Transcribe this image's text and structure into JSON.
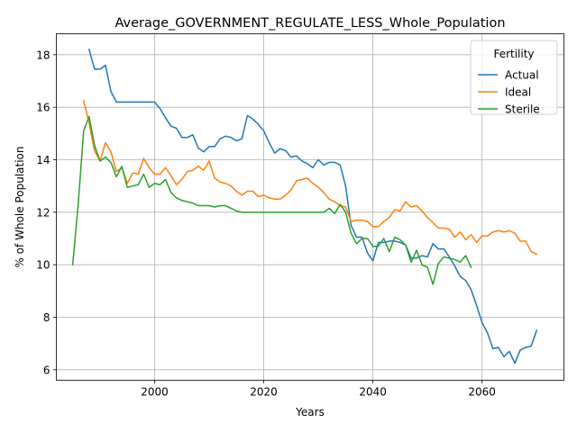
{
  "chart_data": {
    "type": "line",
    "title": "Average_GOVERNMENT_REGULATE_LESS_Whole_Population",
    "xlabel": "Years",
    "ylabel": "% of Whole Population",
    "xlim": [
      1982,
      2075
    ],
    "ylim": [
      5.6,
      18.8
    ],
    "xticks": [
      2000,
      2020,
      2040,
      2060
    ],
    "yticks": [
      6,
      8,
      10,
      12,
      14,
      16,
      18
    ],
    "grid": true,
    "legend": {
      "title": "Fertility",
      "position": "top-right"
    },
    "series": [
      {
        "name": "Actual",
        "color": "#1f77b4",
        "x": [
          1988,
          1989,
          1990,
          1991,
          1992,
          1993,
          1994,
          1995,
          1996,
          1997,
          1998,
          1999,
          2000,
          2001,
          2002,
          2003,
          2004,
          2005,
          2006,
          2007,
          2008,
          2009,
          2010,
          2011,
          2012,
          2013,
          2014,
          2015,
          2016,
          2017,
          2018,
          2019,
          2020,
          2021,
          2022,
          2023,
          2024,
          2025,
          2026,
          2027,
          2028,
          2029,
          2030,
          2031,
          2032,
          2033,
          2034,
          2035,
          2036,
          2037,
          2038,
          2039,
          2040,
          2041,
          2042,
          2043,
          2044,
          2045,
          2046,
          2047,
          2048,
          2049,
          2050,
          2051,
          2052,
          2053,
          2054,
          2055,
          2056,
          2057,
          2058,
          2059,
          2060,
          2061,
          2062,
          2063,
          2064,
          2065,
          2066,
          2067,
          2068,
          2069,
          2070
        ],
        "y": [
          18.2,
          17.45,
          17.45,
          17.6,
          16.6,
          16.2,
          16.2,
          16.2,
          16.2,
          16.2,
          16.2,
          16.2,
          16.2,
          15.95,
          15.6,
          15.28,
          15.2,
          14.85,
          14.85,
          14.95,
          14.45,
          14.3,
          14.5,
          14.5,
          14.8,
          14.9,
          14.85,
          14.72,
          14.8,
          15.68,
          15.55,
          15.35,
          15.1,
          14.65,
          14.25,
          14.42,
          14.35,
          14.1,
          14.15,
          13.95,
          13.85,
          13.7,
          14.0,
          13.8,
          13.9,
          13.9,
          13.8,
          13.0,
          11.5,
          11.05,
          11.05,
          10.45,
          10.15,
          10.85,
          10.85,
          10.9,
          10.9,
          10.85,
          10.75,
          10.25,
          10.25,
          10.35,
          10.3,
          10.8,
          10.6,
          10.6,
          10.3,
          9.95,
          9.55,
          9.4,
          9.05,
          8.45,
          7.8,
          7.4,
          6.8,
          6.85,
          6.5,
          6.7,
          6.25,
          6.75,
          6.85,
          6.9,
          7.5
        ]
      },
      {
        "name": "Ideal",
        "color": "#ff7f0e",
        "x": [
          1987,
          1988,
          1989,
          1990,
          1991,
          1992,
          1993,
          1994,
          1995,
          1996,
          1997,
          1998,
          1999,
          2000,
          2001,
          2002,
          2003,
          2004,
          2005,
          2006,
          2007,
          2008,
          2009,
          2010,
          2011,
          2012,
          2013,
          2014,
          2015,
          2016,
          2017,
          2018,
          2019,
          2020,
          2021,
          2022,
          2023,
          2024,
          2025,
          2026,
          2027,
          2028,
          2029,
          2030,
          2031,
          2032,
          2033,
          2034,
          2035,
          2036,
          2037,
          2038,
          2039,
          2040,
          2041,
          2042,
          2043,
          2044,
          2045,
          2046,
          2047,
          2048,
          2049,
          2050,
          2051,
          2052,
          2053,
          2054,
          2055,
          2056,
          2057,
          2058,
          2059,
          2060,
          2061,
          2062,
          2063,
          2064,
          2065,
          2066,
          2067,
          2068,
          2069,
          2070
        ],
        "y": [
          16.25,
          15.4,
          14.35,
          13.95,
          14.65,
          14.3,
          13.55,
          13.7,
          13.1,
          13.5,
          13.45,
          14.05,
          13.7,
          13.45,
          13.45,
          13.7,
          13.4,
          13.05,
          13.25,
          13.55,
          13.6,
          13.75,
          13.6,
          13.95,
          13.3,
          13.15,
          13.1,
          13.0,
          12.8,
          12.65,
          12.8,
          12.8,
          12.6,
          12.65,
          12.55,
          12.5,
          12.5,
          12.65,
          12.85,
          13.2,
          13.25,
          13.3,
          13.1,
          12.95,
          12.75,
          12.5,
          12.4,
          12.25,
          12.2,
          11.65,
          11.7,
          11.7,
          11.65,
          11.45,
          11.45,
          11.65,
          11.8,
          12.1,
          12.05,
          12.4,
          12.2,
          12.25,
          12.05,
          11.8,
          11.6,
          11.4,
          11.4,
          11.35,
          11.05,
          11.25,
          10.95,
          11.15,
          10.85,
          11.1,
          11.1,
          11.25,
          11.3,
          11.25,
          11.3,
          11.2,
          10.9,
          10.9,
          10.5,
          10.4
        ]
      },
      {
        "name": "Sterile",
        "color": "#2ca02c",
        "x": [
          1985,
          1986,
          1987,
          1988,
          1989,
          1990,
          1991,
          1992,
          1993,
          1994,
          1995,
          1996,
          1997,
          1998,
          1999,
          2000,
          2001,
          2002,
          2003,
          2004,
          2005,
          2006,
          2007,
          2008,
          2009,
          2010,
          2011,
          2012,
          2013,
          2014,
          2015,
          2016,
          2017,
          2018,
          2019,
          2020,
          2021,
          2022,
          2023,
          2024,
          2025,
          2026,
          2027,
          2028,
          2029,
          2030,
          2031,
          2032,
          2033,
          2034,
          2035,
          2036,
          2037,
          2038,
          2039,
          2040,
          2041,
          2042,
          2043,
          2044,
          2045,
          2046,
          2047,
          2048,
          2049,
          2050,
          2051,
          2052,
          2053,
          2054,
          2055,
          2056,
          2057,
          2058
        ],
        "y": [
          10.0,
          12.3,
          15.1,
          15.65,
          14.55,
          13.95,
          14.1,
          13.9,
          13.35,
          13.75,
          12.95,
          13.0,
          13.05,
          13.45,
          12.95,
          13.1,
          13.05,
          13.25,
          12.75,
          12.55,
          12.45,
          12.4,
          12.35,
          12.25,
          12.25,
          12.25,
          12.2,
          12.25,
          12.25,
          12.15,
          12.05,
          12.0,
          12.0,
          12.0,
          12.0,
          12.0,
          12.0,
          12.0,
          12.0,
          12.0,
          12.0,
          12.0,
          12.0,
          12.0,
          12.0,
          12.0,
          12.0,
          12.15,
          11.95,
          12.3,
          12.0,
          11.2,
          10.8,
          11.0,
          11.0,
          10.7,
          10.7,
          11.0,
          10.5,
          11.05,
          10.95,
          10.75,
          10.1,
          10.55,
          10.0,
          9.9,
          9.25,
          10.05,
          10.3,
          10.25,
          10.2,
          10.1,
          10.35,
          9.9
        ]
      }
    ]
  }
}
